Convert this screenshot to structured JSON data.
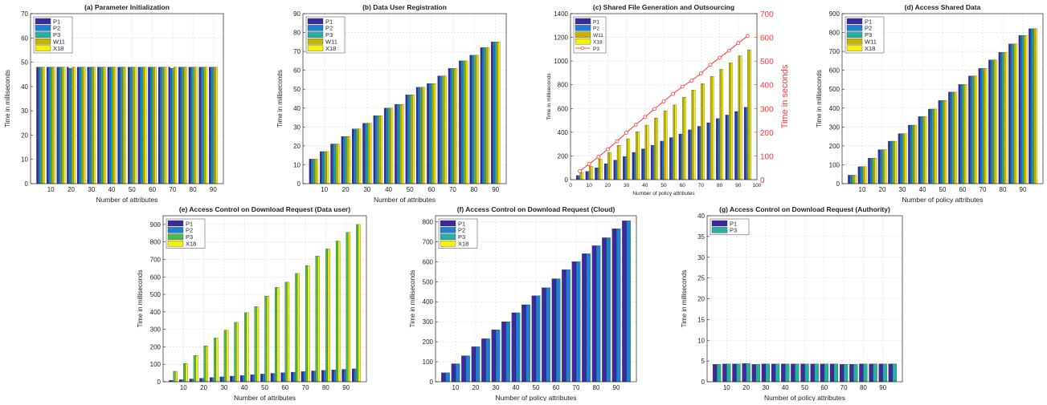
{
  "colors": {
    "P1": "#3a2a9e",
    "P2": "#1f7fd0",
    "P3": "#26b0a0",
    "P3_green": "#4cbb4c",
    "W11": "#c8b400",
    "X18": "#f5f20a",
    "line_P3": "#ff3333",
    "axis": "#262626",
    "grid": "#d9d9d9"
  },
  "chart_data": [
    {
      "id": "a",
      "type": "bar",
      "title": "(a) Parameter Initialization",
      "xlabel": "Number of attributes",
      "ylabel": "Time in milliseconds",
      "ylim": [
        0,
        70
      ],
      "yticks": [
        0,
        10,
        20,
        30,
        40,
        50,
        60,
        70
      ],
      "xticklabels": [
        "10",
        "20",
        "30",
        "40",
        "50",
        "60",
        "70",
        "80",
        "90"
      ],
      "grid": true,
      "legend": [
        "P1",
        "P2",
        "P3",
        "W11",
        "X18"
      ],
      "legend_position": "top-left",
      "categories": [
        5,
        10,
        15,
        20,
        25,
        30,
        35,
        40,
        45,
        50,
        55,
        60,
        65,
        70,
        75,
        80,
        85,
        90
      ],
      "series": [
        {
          "name": "P1",
          "values": [
            48,
            48,
            48,
            48,
            48,
            48,
            48,
            48,
            48,
            48,
            48,
            48,
            48,
            48,
            48,
            48,
            48,
            48
          ]
        },
        {
          "name": "P2",
          "values": [
            48,
            48,
            48,
            47.5,
            48,
            48,
            48,
            48,
            48,
            48,
            48,
            48,
            48,
            47.5,
            48,
            48,
            48,
            48
          ]
        },
        {
          "name": "P3",
          "values": [
            48,
            48,
            48,
            47.5,
            48,
            48,
            48,
            48,
            48,
            48,
            48,
            48,
            48,
            47.5,
            48,
            48,
            48,
            48
          ]
        },
        {
          "name": "W11",
          "values": [
            48,
            48,
            48,
            48,
            48,
            48,
            48,
            48,
            48,
            48,
            48,
            48,
            48,
            48,
            48,
            48,
            48,
            48
          ]
        },
        {
          "name": "X18",
          "values": [
            48,
            48,
            48,
            48,
            48,
            48,
            48,
            48,
            48,
            48,
            48,
            48,
            48,
            48,
            48,
            48,
            48,
            48
          ]
        }
      ]
    },
    {
      "id": "b",
      "type": "bar",
      "title": "(b) Data User Registration",
      "xlabel": "Number of attributes",
      "ylabel": "Time in milliseconds",
      "ylim": [
        0,
        90
      ],
      "yticks": [
        0,
        10,
        20,
        30,
        40,
        50,
        60,
        70,
        80,
        90
      ],
      "xticklabels": [
        "10",
        "20",
        "30",
        "40",
        "50",
        "60",
        "70",
        "80",
        "90"
      ],
      "grid": true,
      "legend": [
        "P1",
        "P2",
        "P3",
        "W11",
        "X18"
      ],
      "legend_position": "top-left",
      "categories": [
        5,
        10,
        15,
        20,
        25,
        30,
        35,
        40,
        45,
        50,
        55,
        60,
        65,
        70,
        75,
        80,
        85,
        90
      ],
      "series": [
        {
          "name": "P1",
          "values": [
            13,
            17,
            21,
            25,
            29,
            32,
            36,
            40,
            42,
            47,
            51,
            53,
            57,
            61,
            65,
            68,
            72,
            75
          ]
        },
        {
          "name": "P2",
          "values": [
            13,
            17,
            21,
            25,
            29,
            32,
            36,
            40,
            42,
            47,
            51,
            53,
            57,
            61,
            65,
            68,
            72,
            75
          ]
        },
        {
          "name": "P3",
          "values": [
            13,
            17,
            21,
            25,
            29,
            32,
            36,
            40,
            42,
            47,
            51,
            53,
            57,
            61,
            65,
            68,
            72,
            75
          ]
        },
        {
          "name": "W11",
          "values": [
            13,
            17,
            21,
            25,
            29,
            32,
            36,
            40,
            42,
            47,
            51,
            53,
            57,
            61,
            65,
            68,
            72,
            75
          ]
        },
        {
          "name": "X18",
          "values": [
            13,
            17,
            21,
            25,
            29,
            32,
            36,
            40,
            42,
            47,
            51,
            53,
            57,
            61,
            65,
            68,
            72,
            75
          ]
        }
      ]
    },
    {
      "id": "c",
      "type": "bar",
      "title": "(c) Shared File Generation and Outsourcing",
      "xlabel": "Number of policy attributes",
      "ylabel": "Time in milliseconds",
      "y2label": "Time in seconds",
      "ylim": [
        0,
        1400
      ],
      "yticks": [
        0,
        200,
        400,
        600,
        800,
        1000,
        1200,
        1400
      ],
      "y2lim": [
        0,
        700
      ],
      "y2ticks": [
        0,
        100,
        200,
        300,
        400,
        500,
        600,
        700
      ],
      "xlim": [
        0,
        100
      ],
      "xticks": [
        0,
        10,
        20,
        30,
        40,
        50,
        60,
        70,
        80,
        90,
        100
      ],
      "grid": true,
      "legend": [
        "P1",
        "P2",
        "W11",
        "X18",
        "P3"
      ],
      "legend_position": "top-left",
      "categories": [
        5,
        10,
        15,
        20,
        25,
        30,
        35,
        40,
        45,
        50,
        55,
        60,
        65,
        70,
        75,
        80,
        85,
        90,
        95
      ],
      "series": [
        {
          "name": "P1",
          "values": [
            35,
            70,
            100,
            135,
            165,
            195,
            230,
            260,
            290,
            325,
            355,
            385,
            420,
            450,
            480,
            515,
            545,
            575,
            610
          ]
        },
        {
          "name": "P2",
          "values": [
            35,
            70,
            100,
            135,
            165,
            195,
            230,
            260,
            290,
            325,
            355,
            385,
            420,
            450,
            480,
            515,
            545,
            575,
            610
          ]
        },
        {
          "name": "W11",
          "values": [
            60,
            115,
            175,
            230,
            290,
            345,
            405,
            460,
            520,
            580,
            630,
            695,
            755,
            810,
            870,
            930,
            985,
            1045,
            1095
          ]
        },
        {
          "name": "X18",
          "values": [
            60,
            115,
            175,
            230,
            290,
            345,
            405,
            460,
            520,
            580,
            630,
            695,
            755,
            810,
            870,
            930,
            985,
            1045,
            1095
          ]
        }
      ],
      "line_series": {
        "name": "P3",
        "x": [
          5,
          10,
          15,
          20,
          25,
          30,
          35,
          40,
          45,
          50,
          55,
          60,
          65,
          70,
          75,
          80,
          85,
          90,
          95
        ],
        "values": [
          36,
          66,
          96,
          128,
          162,
          198,
          232,
          264,
          298,
          330,
          362,
          392,
          418,
          448,
          484,
          514,
          544,
          576,
          606
        ]
      }
    },
    {
      "id": "d",
      "type": "bar",
      "title": "(d) Access Shared Data",
      "xlabel": "Number of policy attributes",
      "ylabel": "Time in milliseconds",
      "ylim": [
        0,
        900
      ],
      "yticks": [
        0,
        100,
        200,
        300,
        400,
        500,
        600,
        700,
        800,
        900
      ],
      "xticklabels": [
        "10",
        "20",
        "30",
        "40",
        "50",
        "60",
        "70",
        "80",
        "90"
      ],
      "grid": true,
      "legend": [
        "P1",
        "P2",
        "P3",
        "W11",
        "X18"
      ],
      "legend_position": "top-left",
      "categories": [
        5,
        10,
        15,
        20,
        25,
        30,
        35,
        40,
        45,
        50,
        55,
        60,
        65,
        70,
        75,
        80,
        85,
        90,
        95
      ],
      "series": [
        {
          "name": "P1",
          "values": [
            45,
            90,
            135,
            180,
            225,
            265,
            310,
            355,
            395,
            440,
            485,
            525,
            570,
            610,
            655,
            695,
            740,
            785,
            820
          ]
        },
        {
          "name": "P2",
          "values": [
            45,
            90,
            135,
            180,
            225,
            265,
            310,
            355,
            395,
            440,
            485,
            525,
            570,
            610,
            655,
            695,
            740,
            785,
            820
          ]
        },
        {
          "name": "P3",
          "values": [
            45,
            90,
            135,
            180,
            225,
            265,
            310,
            355,
            395,
            440,
            485,
            525,
            570,
            610,
            655,
            695,
            740,
            785,
            820
          ]
        },
        {
          "name": "W11",
          "values": [
            45,
            90,
            135,
            180,
            225,
            265,
            310,
            355,
            395,
            440,
            485,
            525,
            570,
            610,
            655,
            695,
            740,
            785,
            820
          ]
        },
        {
          "name": "X18",
          "values": [
            45,
            90,
            135,
            180,
            225,
            265,
            310,
            355,
            395,
            440,
            485,
            525,
            570,
            610,
            655,
            695,
            740,
            785,
            820
          ]
        }
      ]
    },
    {
      "id": "e",
      "type": "bar",
      "title": "(e) Access Control on Download Request (Data user)",
      "xlabel": "Number of attributes",
      "ylabel": "Time in milliseconds",
      "ylim": [
        0,
        950
      ],
      "yticks": [
        0,
        100,
        200,
        300,
        400,
        500,
        600,
        700,
        800,
        900
      ],
      "xticklabels": [
        "10",
        "20",
        "30",
        "40",
        "50",
        "60",
        "70",
        "80",
        "90"
      ],
      "grid": true,
      "legend": [
        "P1",
        "P2",
        "P3",
        "X18"
      ],
      "legend_position": "top-left",
      "categories": [
        5,
        10,
        15,
        20,
        25,
        30,
        35,
        40,
        45,
        50,
        55,
        60,
        65,
        70,
        75,
        80,
        85,
        90,
        95
      ],
      "series": [
        {
          "name": "P1",
          "values": [
            8,
            12,
            16,
            20,
            24,
            28,
            32,
            36,
            40,
            44,
            48,
            52,
            55,
            58,
            62,
            65,
            68,
            71,
            74
          ]
        },
        {
          "name": "P2",
          "values": [
            8,
            12,
            16,
            20,
            24,
            28,
            32,
            36,
            40,
            44,
            48,
            52,
            55,
            58,
            62,
            65,
            68,
            71,
            74
          ]
        },
        {
          "name": "P3",
          "values": [
            60,
            105,
            150,
            205,
            250,
            295,
            340,
            395,
            430,
            490,
            540,
            570,
            620,
            665,
            720,
            760,
            805,
            855,
            900
          ]
        },
        {
          "name": "X18",
          "values": [
            60,
            105,
            150,
            205,
            250,
            295,
            340,
            395,
            430,
            490,
            540,
            570,
            620,
            665,
            720,
            760,
            805,
            855,
            900
          ]
        }
      ]
    },
    {
      "id": "f",
      "type": "bar",
      "title": "(f) Access Control on Download Request (Cloud)",
      "xlabel": "Number of policy attributes",
      "ylabel": "Time in milliseconds",
      "ylim": [
        0,
        830
      ],
      "yticks": [
        0,
        100,
        200,
        300,
        400,
        500,
        600,
        700,
        800
      ],
      "xticklabels": [
        "10",
        "20",
        "30",
        "40",
        "50",
        "60",
        "70",
        "80",
        "90"
      ],
      "grid": true,
      "legend": [
        "P1",
        "P2",
        "P3",
        "X18"
      ],
      "legend_position": "top-left",
      "categories": [
        5,
        10,
        15,
        20,
        25,
        30,
        35,
        40,
        45,
        50,
        55,
        60,
        65,
        70,
        75,
        80,
        85,
        90,
        95
      ],
      "series": [
        {
          "name": "P1",
          "values": [
            45,
            90,
            130,
            175,
            215,
            260,
            300,
            345,
            385,
            430,
            470,
            515,
            560,
            600,
            640,
            680,
            720,
            765,
            805
          ]
        },
        {
          "name": "P2",
          "values": [
            45,
            90,
            130,
            175,
            215,
            260,
            300,
            345,
            385,
            430,
            470,
            515,
            560,
            600,
            640,
            680,
            720,
            765,
            805
          ]
        }
      ]
    },
    {
      "id": "g",
      "type": "bar",
      "title": "(g) Access Control on Download Request (Authority)",
      "xlabel": "Number of policy attributes",
      "ylabel": "Time in milliseconds",
      "ylim": [
        0,
        40
      ],
      "yticks": [
        0,
        5,
        10,
        15,
        20,
        25,
        30,
        35,
        40
      ],
      "xticklabels": [
        "10",
        "20",
        "30",
        "40",
        "50",
        "60",
        "70",
        "80",
        "90"
      ],
      "grid": true,
      "legend": [
        "P1",
        "P3"
      ],
      "legend_position": "top-left",
      "categories": [
        5,
        10,
        15,
        20,
        25,
        30,
        35,
        40,
        45,
        50,
        55,
        60,
        65,
        70,
        75,
        80,
        85,
        90,
        95
      ],
      "series": [
        {
          "name": "P1",
          "values": [
            4.2,
            4.3,
            4.3,
            4.4,
            4.2,
            4.3,
            4.3,
            4.3,
            4.3,
            4.3,
            4.3,
            4.3,
            4.3,
            4.2,
            4.2,
            4.3,
            4.3,
            4.3,
            4.3
          ]
        },
        {
          "name": "P3",
          "values": [
            4.2,
            4.3,
            4.3,
            4.4,
            4.2,
            4.3,
            4.3,
            4.3,
            4.3,
            4.3,
            4.3,
            4.3,
            4.3,
            4.2,
            4.2,
            4.3,
            4.3,
            4.3,
            4.3
          ]
        }
      ]
    }
  ]
}
